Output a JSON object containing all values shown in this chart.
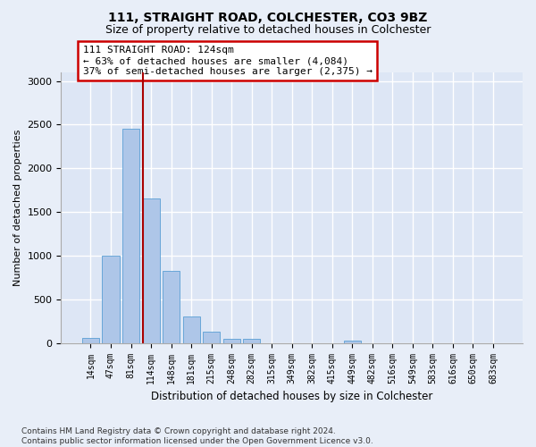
{
  "title1": "111, STRAIGHT ROAD, COLCHESTER, CO3 9BZ",
  "title2": "Size of property relative to detached houses in Colchester",
  "xlabel": "Distribution of detached houses by size in Colchester",
  "ylabel": "Number of detached properties",
  "categories": [
    "14sqm",
    "47sqm",
    "81sqm",
    "114sqm",
    "148sqm",
    "181sqm",
    "215sqm",
    "248sqm",
    "282sqm",
    "315sqm",
    "349sqm",
    "382sqm",
    "415sqm",
    "449sqm",
    "482sqm",
    "516sqm",
    "549sqm",
    "583sqm",
    "616sqm",
    "650sqm",
    "683sqm"
  ],
  "values": [
    60,
    1000,
    2450,
    1650,
    830,
    300,
    130,
    50,
    45,
    0,
    0,
    0,
    0,
    30,
    0,
    0,
    0,
    0,
    0,
    0,
    0
  ],
  "bar_color": "#aec6e8",
  "bar_edge_color": "#5a9fd4",
  "vline_x": 2.62,
  "vline_color": "#aa0000",
  "annotation_text": "111 STRAIGHT ROAD: 124sqm\n← 63% of detached houses are smaller (4,084)\n37% of semi-detached houses are larger (2,375) →",
  "annotation_box_color": "#ffffff",
  "annotation_box_edge": "#cc0000",
  "ylim": [
    0,
    3100
  ],
  "yticks": [
    0,
    500,
    1000,
    1500,
    2000,
    2500,
    3000
  ],
  "footnote": "Contains HM Land Registry data © Crown copyright and database right 2024.\nContains public sector information licensed under the Open Government Licence v3.0.",
  "bg_color": "#e8eef8",
  "plot_bg": "#dde6f5",
  "grid_color": "#ffffff"
}
